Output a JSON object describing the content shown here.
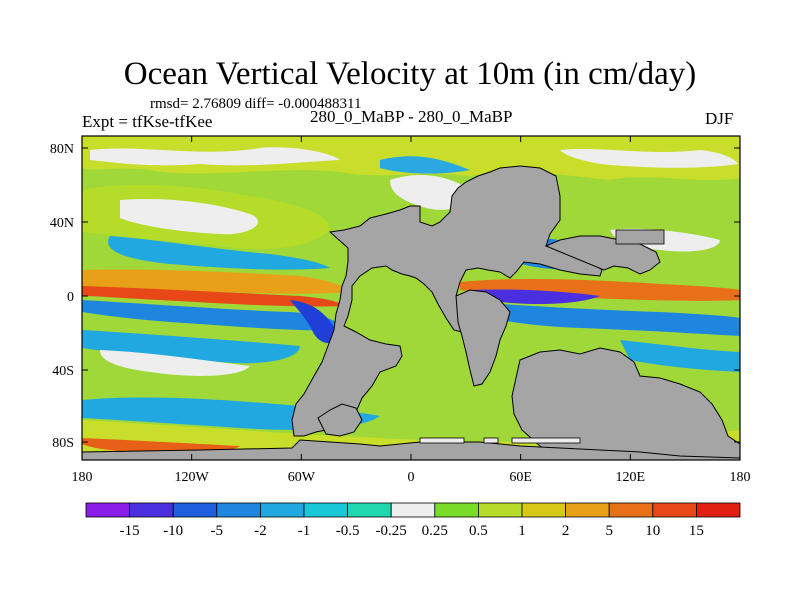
{
  "title": "Ocean Vertical Velocity at 10m (in cm/day)",
  "stats": "rmsd= 2.76809 diff= -0.000488311",
  "experiment": "Expt = tfKse-tfKee",
  "subtitle": "280_0_MaBP - 280_0_MaBP",
  "season": "DJF",
  "map": {
    "lon_ticks": [
      "180",
      "120W",
      "60W",
      "0",
      "60E",
      "120E",
      "180"
    ],
    "lat_ticks": [
      "80N",
      "40N",
      "0",
      "40S",
      "80S"
    ],
    "land_color": "#a5a5a5"
  },
  "colorbar": {
    "labels": [
      "-15",
      "-10",
      "-5",
      "-2",
      "-1",
      "-0.5",
      "-0.25",
      "0.25",
      "0.5",
      "1",
      "2",
      "5",
      "10",
      "15"
    ],
    "colors": [
      "#8a1ee8",
      "#4a2fe0",
      "#1f5fe0",
      "#1f86e0",
      "#22a8e0",
      "#19c8d8",
      "#1fd8b0",
      "#eeeeee",
      "#78dc28",
      "#b4dc28",
      "#d8c818",
      "#e8a018",
      "#e87018",
      "#e84818",
      "#e01f10"
    ]
  }
}
